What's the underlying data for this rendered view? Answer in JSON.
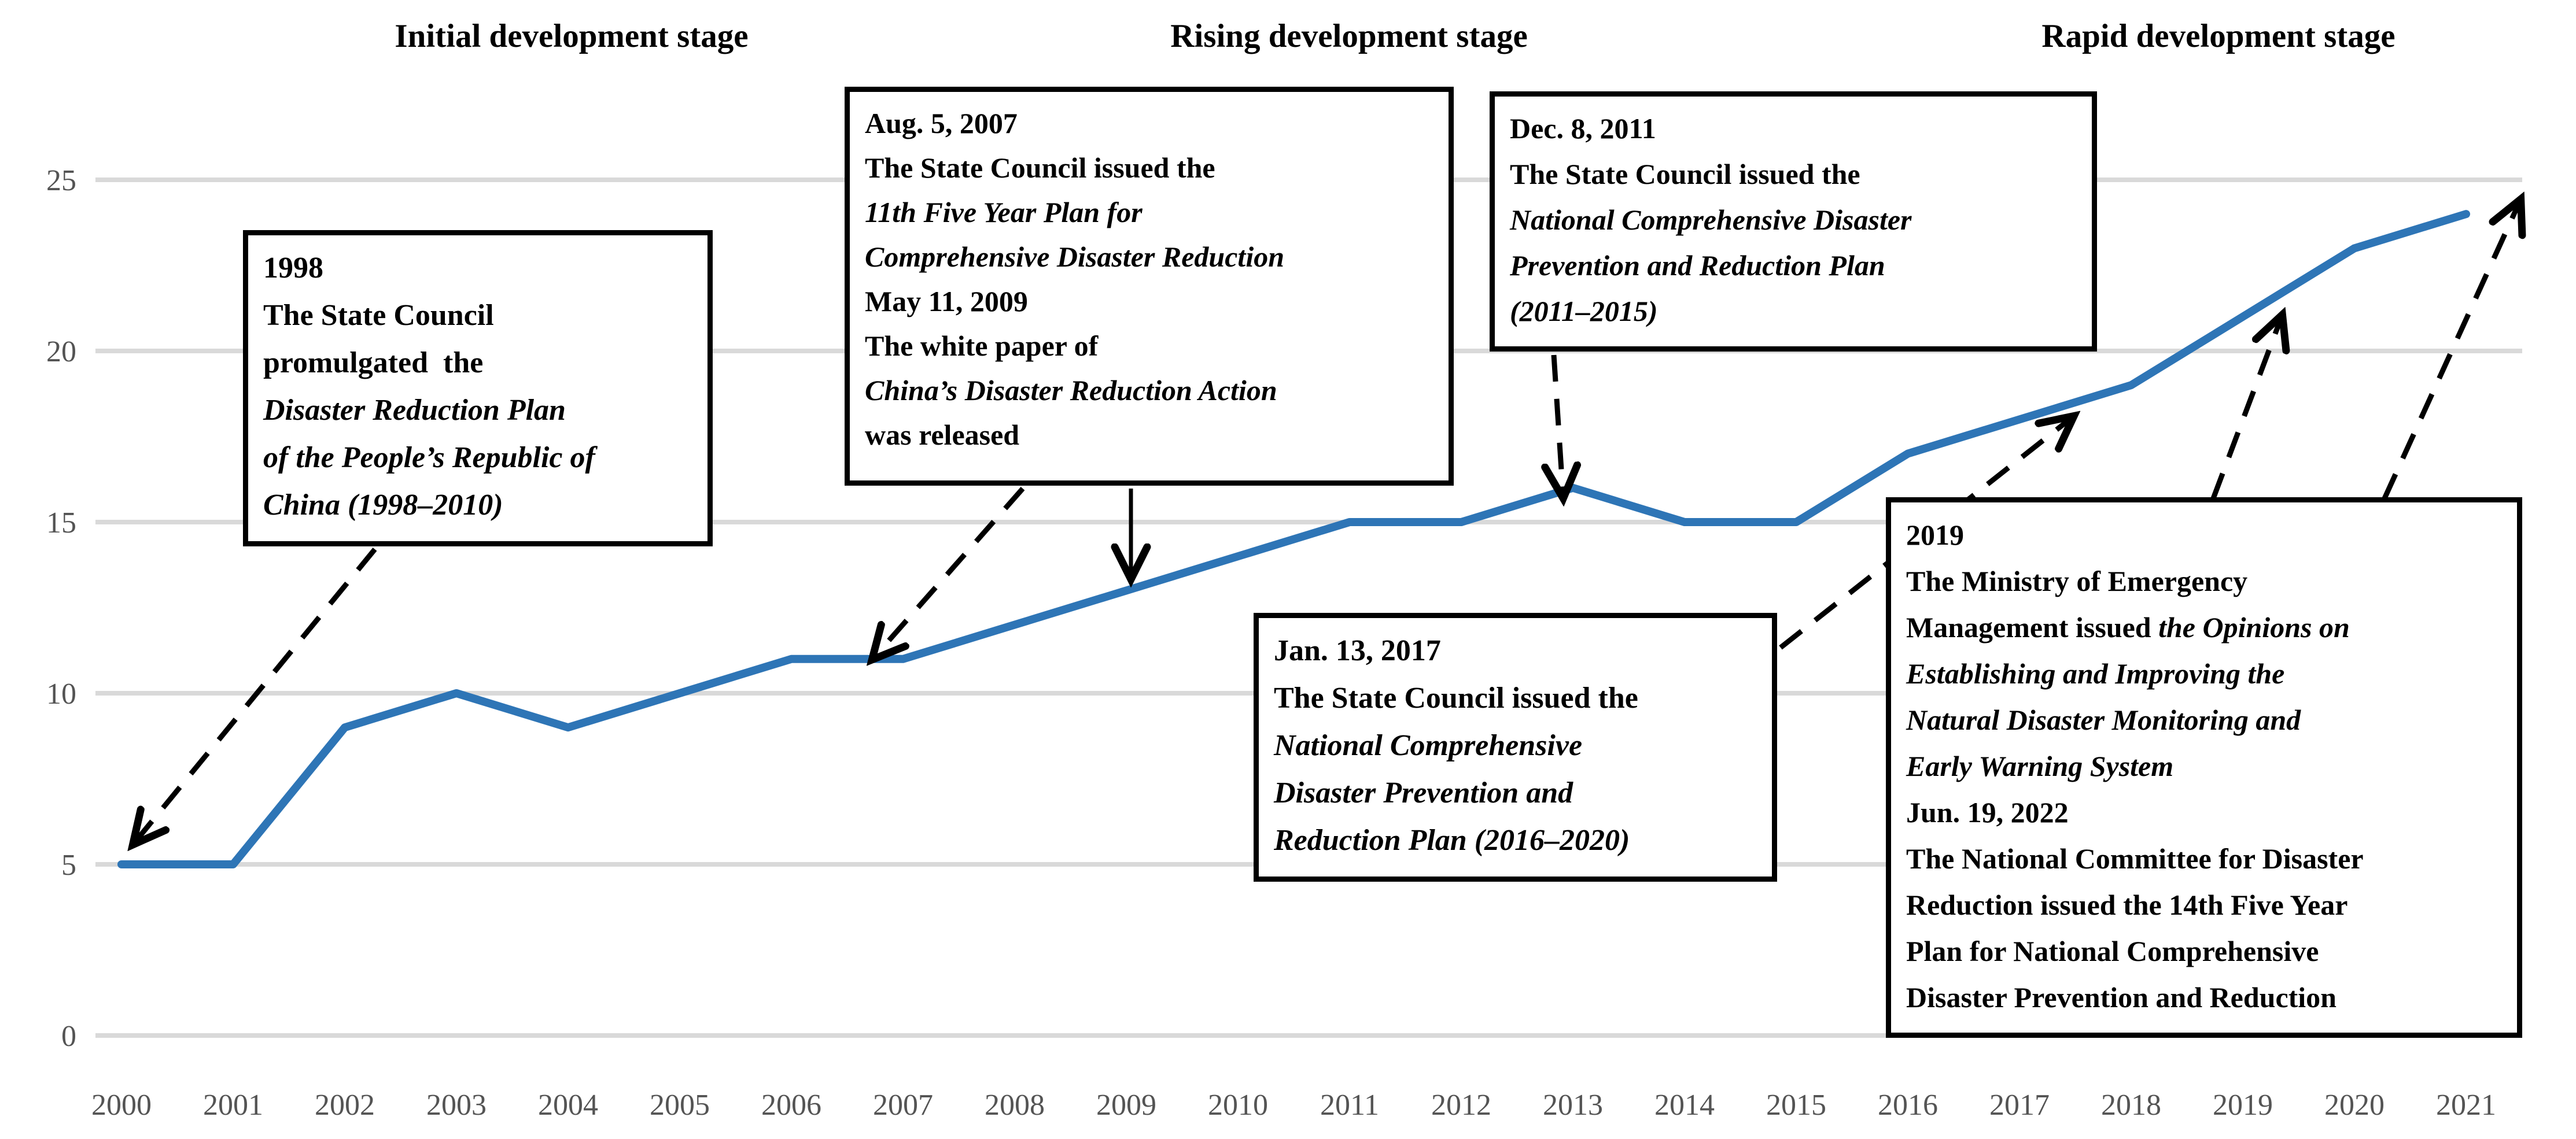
{
  "stages": [
    {
      "label": "Initial development stage"
    },
    {
      "label": "Rising development stage"
    },
    {
      "label": "Rapid development stage"
    }
  ],
  "axis": {
    "tick_color": "#545454",
    "grid_color": "#d9d9d9"
  },
  "chart_data": {
    "type": "line",
    "x": [
      2000,
      2001,
      2002,
      2003,
      2004,
      2005,
      2006,
      2007,
      2008,
      2009,
      2010,
      2011,
      2012,
      2013,
      2014,
      2015,
      2016,
      2017,
      2018,
      2019,
      2020,
      2021
    ],
    "values": [
      5,
      5,
      9,
      10,
      9,
      10,
      11,
      11,
      12,
      13,
      14,
      15,
      15,
      16,
      15,
      15,
      17,
      18,
      19,
      21,
      23,
      24
    ],
    "title": "",
    "xlabel": "",
    "ylabel": "",
    "ylim": [
      0,
      25
    ],
    "yticks": [
      0,
      5,
      10,
      15,
      20,
      25
    ],
    "grid": true,
    "legend": false,
    "line_color": "#2e75b6"
  },
  "annotations": {
    "a1998": {
      "lines": [
        [
          {
            "t": "1998"
          }
        ],
        [
          {
            "t": "The State Council"
          }
        ],
        [
          {
            "t": "promulgated  the"
          }
        ],
        [
          {
            "t": "Disaster Reduction Plan",
            "i": true
          }
        ],
        [
          {
            "t": "of the People’s Republic of",
            "i": true
          }
        ],
        [
          {
            "t": "China (1998–2010)",
            "i": true
          }
        ]
      ]
    },
    "a2007": {
      "lines": [
        [
          {
            "t": "Aug. 5, 2007"
          }
        ],
        [
          {
            "t": "The State Council issued the"
          }
        ],
        [
          {
            "t": "11th Five Year Plan for",
            "i": true
          }
        ],
        [
          {
            "t": "Comprehensive Disaster Reduction",
            "i": true
          }
        ],
        [
          {
            "t": "May 11, 2009"
          }
        ],
        [
          {
            "t": "The white paper of"
          }
        ],
        [
          {
            "t": "China’s Disaster Reduction Action",
            "i": true
          }
        ],
        [
          {
            "t": "was released"
          }
        ]
      ]
    },
    "a2011": {
      "lines": [
        [
          {
            "t": "Dec. 8, 2011"
          }
        ],
        [
          {
            "t": "The State Council issued the"
          }
        ],
        [
          {
            "t": "National Comprehensive Disaster",
            "i": true
          }
        ],
        [
          {
            "t": "Prevention and Reduction Plan",
            "i": true
          }
        ],
        [
          {
            "t": "(2011–2015)",
            "i": true
          }
        ]
      ]
    },
    "a2017": {
      "lines": [
        [
          {
            "t": "Jan. 13, 2017"
          }
        ],
        [
          {
            "t": "The State Council issued the"
          }
        ],
        [
          {
            "t": "National Comprehensive",
            "i": true
          }
        ],
        [
          {
            "t": "Disaster Prevention and",
            "i": true
          }
        ],
        [
          {
            "t": "Reduction Plan (2016–2020)",
            "i": true
          }
        ]
      ]
    },
    "a2019": {
      "lines": [
        [
          {
            "t": "2019"
          }
        ],
        [
          {
            "t": "The Ministry of Emergency"
          }
        ],
        [
          {
            "t": "Management issued "
          },
          {
            "t": "the Opinions on",
            "i": true
          }
        ],
        [
          {
            "t": "Establishing and Improving the",
            "i": true
          }
        ],
        [
          {
            "t": "Natural Disaster Monitoring and",
            "i": true
          }
        ],
        [
          {
            "t": "Early Warning System",
            "i": true
          }
        ],
        [
          {
            "t": "Jun. 19, 2022"
          }
        ],
        [
          {
            "t": "The National Committee for Disaster"
          }
        ],
        [
          {
            "t": "Reduction issued the 14th Five Year"
          }
        ],
        [
          {
            "t": "Plan for National Comprehensive"
          }
        ],
        [
          {
            "t": "Disaster Prevention and Reduction"
          }
        ]
      ]
    }
  }
}
